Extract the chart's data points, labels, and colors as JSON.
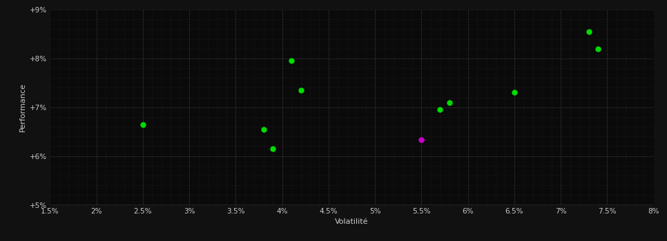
{
  "xlabel": "Volatilité",
  "ylabel": "Performance",
  "background_color": "#111111",
  "plot_bg_color": "#0a0a0a",
  "major_grid_color": "#555555",
  "minor_grid_color": "#2a2a2a",
  "text_color": "#cccccc",
  "xlim": [
    0.015,
    0.08
  ],
  "ylim": [
    0.05,
    0.09
  ],
  "xticks_major": [
    0.015,
    0.02,
    0.025,
    0.03,
    0.035,
    0.04,
    0.045,
    0.05,
    0.055,
    0.06,
    0.065,
    0.07,
    0.075,
    0.08
  ],
  "yticks_major": [
    0.05,
    0.06,
    0.07,
    0.08,
    0.09
  ],
  "green_points": [
    [
      0.025,
      0.0665
    ],
    [
      0.038,
      0.0655
    ],
    [
      0.039,
      0.0615
    ],
    [
      0.041,
      0.0795
    ],
    [
      0.042,
      0.0735
    ],
    [
      0.057,
      0.0695
    ],
    [
      0.058,
      0.071
    ],
    [
      0.065,
      0.073
    ],
    [
      0.073,
      0.0855
    ],
    [
      0.074,
      0.082
    ]
  ],
  "magenta_point": [
    0.055,
    0.0633
  ],
  "green_color": "#00dd00",
  "magenta_color": "#cc00cc",
  "point_size": 25,
  "xlabel_fontsize": 8,
  "ylabel_fontsize": 8,
  "tick_labelsize": 7.5
}
